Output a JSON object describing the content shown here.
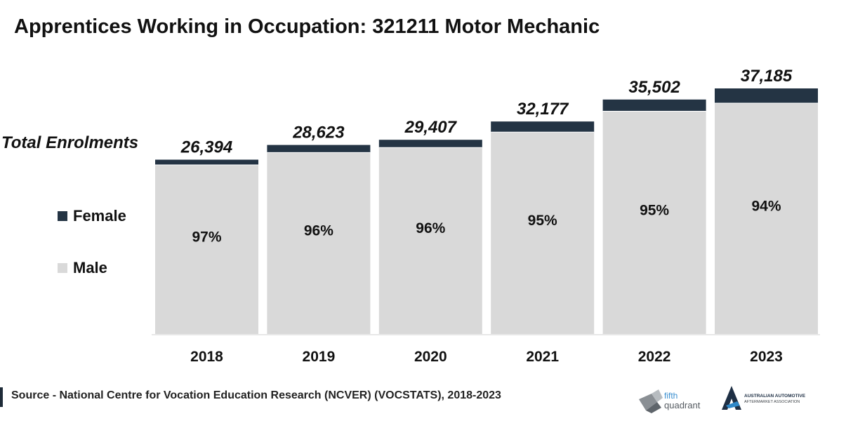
{
  "page": {
    "title": "Apprentices Working in Occupation: 321211 Motor Mechanic",
    "total_label": "Total Enrolments",
    "source": "Source - National Centre for Vocation Education Research (NCVER) (VOCSTATS), 2018-2023"
  },
  "legend": {
    "female": "Female",
    "male": "Male"
  },
  "colors": {
    "female": "#243444",
    "male": "#d9d9d9",
    "text": "#111111"
  },
  "logos": {
    "fifth_quadrant": "fifth quadrant",
    "aaaa_line1": "AUSTRALIAN AUTOMOTIVE",
    "aaaa_line2": "AFTERMARKET ASSOCIATION"
  },
  "chart_data": {
    "type": "bar",
    "stacked": true,
    "title": "Apprentices Working in Occupation: 321211 Motor Mechanic",
    "categories": [
      "2018",
      "2019",
      "2020",
      "2021",
      "2022",
      "2023"
    ],
    "totals": [
      26394,
      28623,
      29407,
      32177,
      35502,
      37185
    ],
    "total_labels": [
      "26,394",
      "28,623",
      "29,407",
      "32,177",
      "35,502",
      "37,185"
    ],
    "series": [
      {
        "name": "Male",
        "percent": [
          97,
          96,
          96,
          95,
          95,
          94
        ],
        "labels": [
          "97%",
          "96%",
          "96%",
          "95%",
          "95%",
          "94%"
        ]
      },
      {
        "name": "Female",
        "percent": [
          3,
          4,
          4,
          5,
          5,
          6
        ]
      }
    ],
    "ylim": [
      0,
      37185
    ],
    "legend_position": "left",
    "grid": false
  }
}
